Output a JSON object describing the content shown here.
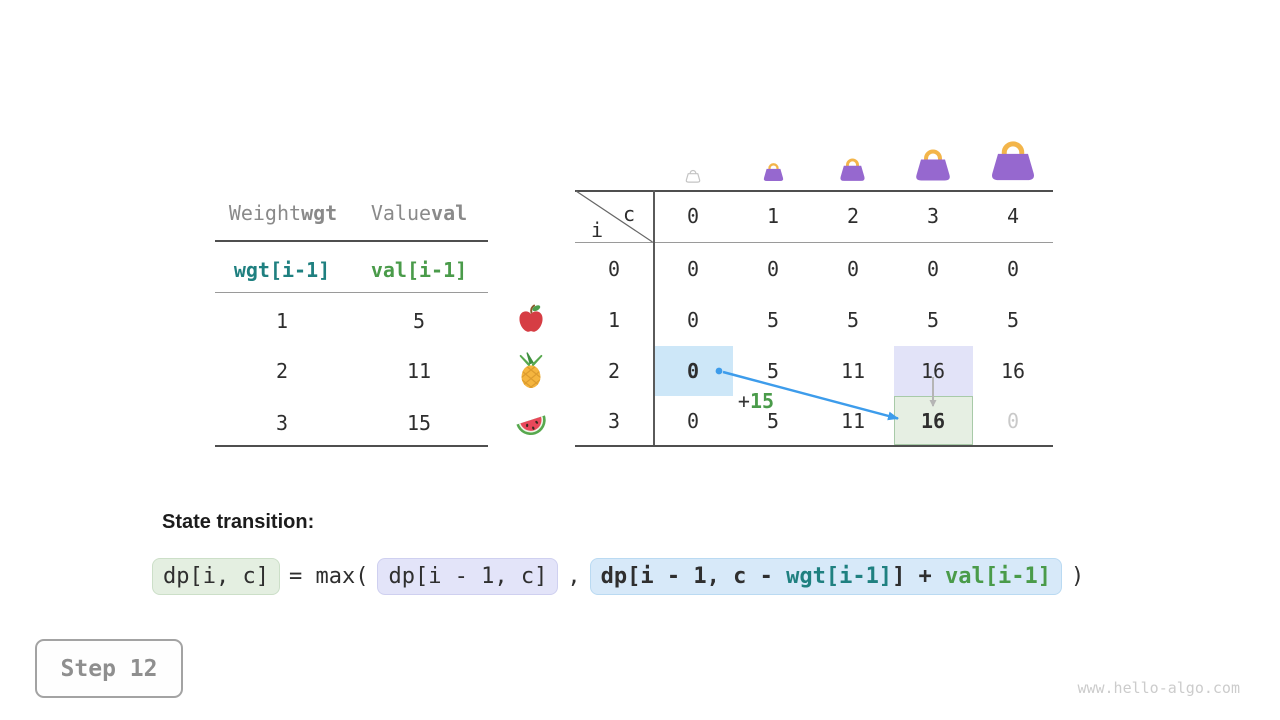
{
  "items_table": {
    "col1_header": {
      "plain": "Weight ",
      "bold": "wgt"
    },
    "col2_header": {
      "plain": "Value ",
      "bold": "val"
    },
    "formula_row": {
      "weight": "wgt[i-1]",
      "value": "val[i-1]"
    },
    "rows": [
      [
        "1",
        "5"
      ],
      [
        "2",
        "11"
      ],
      [
        "3",
        "15"
      ]
    ]
  },
  "dp_table": {
    "corner_top": "c",
    "corner_left": "i",
    "col_headers": [
      "0",
      "1",
      "2",
      "3",
      "4"
    ],
    "row_headers": [
      "0",
      "1",
      "2",
      "3"
    ],
    "cells": [
      [
        "0",
        "0",
        "0",
        "0",
        "0"
      ],
      [
        "0",
        "5",
        "5",
        "5",
        "5"
      ],
      [
        "0",
        "5",
        "11",
        "16",
        "16"
      ],
      [
        "0",
        "5",
        "11",
        "16",
        "0"
      ]
    ],
    "bold_cells": [
      [
        2,
        0
      ],
      [
        3,
        3
      ]
    ],
    "muted_cells": [
      [
        3,
        4
      ]
    ],
    "highlights": [
      {
        "row": 2,
        "col": 0,
        "fill": "#cde7f8"
      },
      {
        "row": 2,
        "col": 3,
        "fill": "#e2e3f8"
      },
      {
        "row": 3,
        "col": 3,
        "fill": "#e6efe3",
        "border": "#a8caa8"
      }
    ],
    "annotation_plus": "+",
    "annotation_value": "15"
  },
  "transition": {
    "label": "State transition:",
    "lhs": "dp[i, c]",
    "operator": "= max(",
    "arg1": "dp[i - 1, c]",
    "separator": ",",
    "arg2_pre": "dp[i - 1, c - ",
    "arg2_wgt": "wgt[i-1]",
    "arg2_mid": "] + ",
    "arg2_val": "val[i-1]",
    "close": ")"
  },
  "step_badge": "Step 12",
  "watermark": "www.hello-algo.com",
  "colors": {
    "teal": "#1f8080",
    "green": "#4a9b4a",
    "arrow_blue": "#3d9ceb",
    "arrow_gray": "#b5b5b5",
    "bag_purple": "#9668cf",
    "bag_handle": "#f3b54a",
    "muted_value": "#c9c9c9",
    "header_gray": "#8a8a8a",
    "highlight_blue": "#cde7f8",
    "highlight_lavender": "#e2e3f8",
    "highlight_green": "#e6efe3"
  }
}
